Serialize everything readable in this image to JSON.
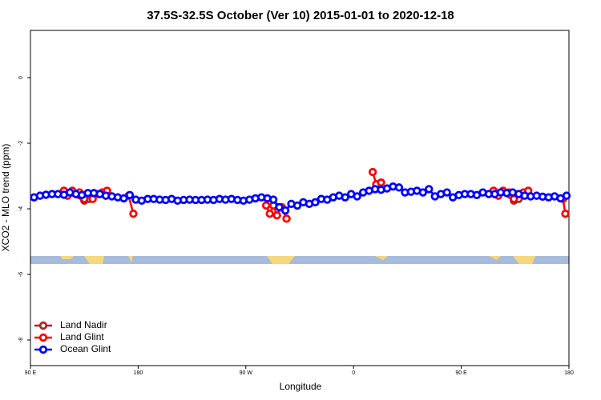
{
  "chart_data": {
    "type": "line",
    "title": "37.5S-32.5S October (Ver 10)   2015-01-01 to 2020-12-18",
    "x_label": "Longitude",
    "y_label": "XCO2 - MLO trend (ppm)",
    "xlim": [
      90,
      540
    ],
    "ylim": [
      -8.78,
      1.44
    ],
    "xticks": [
      {
        "value": 90,
        "label": "90 E"
      },
      180,
      {
        "value": 270,
        "label": "90 W"
      },
      {
        "value": 360,
        "label": "0"
      },
      {
        "value": 450,
        "label": "90 E"
      },
      {
        "value": 540,
        "label": "180"
      }
    ],
    "yticks": [
      0,
      -2,
      -4,
      -6,
      -8
    ],
    "legend": "bottom-left",
    "series": [
      {
        "name": "Land Nadir",
        "color": "#a52a2a",
        "x": [
          118,
          122,
          135,
          139,
          460,
          483,
          494,
          498
        ],
        "values": [
          -3.45,
          -3.55,
          -3.75,
          -3.7,
          null,
          -3.5,
          -3.75,
          -3.7
        ]
      },
      {
        "name": "Land Glint",
        "color": "#ff0000",
        "x": [
          118,
          121,
          125,
          131,
          135,
          139,
          142,
          146,
          150,
          154,
          160,
          172,
          176,
          200,
          287,
          290,
          293,
          296,
          300,
          304,
          340,
          376,
          379,
          383,
          420,
          477,
          481,
          485,
          490,
          494,
          498,
          502,
          506,
          520,
          535,
          537
        ],
        "values": [
          -3.45,
          -3.6,
          -3.45,
          -3.5,
          -3.7,
          -3.55,
          -3.7,
          -3.55,
          -3.5,
          -3.45,
          null,
          -3.6,
          -4.15,
          null,
          -3.9,
          -4.15,
          -3.9,
          -4.2,
          -3.95,
          -4.3,
          null,
          -2.88,
          -3.25,
          -3.2,
          null,
          -3.45,
          -3.6,
          -3.45,
          -3.5,
          -3.7,
          -3.55,
          -3.5,
          -3.45,
          null,
          -3.7,
          -4.15
        ]
      },
      {
        "name": "Ocean Glint",
        "color": "#0000ff",
        "x": [
          93,
          98,
          103,
          108,
          113,
          118,
          123,
          128,
          133,
          138,
          143,
          148,
          153,
          158,
          163,
          168,
          173,
          178,
          183,
          188,
          193,
          198,
          203,
          208,
          213,
          218,
          223,
          228,
          233,
          238,
          243,
          248,
          253,
          258,
          263,
          268,
          273,
          278,
          283,
          288,
          293,
          298,
          303,
          308,
          313,
          318,
          323,
          328,
          333,
          338,
          343,
          348,
          353,
          358,
          363,
          368,
          373,
          378,
          383,
          388,
          393,
          398,
          403,
          408,
          413,
          418,
          423,
          428,
          433,
          438,
          443,
          448,
          453,
          458,
          463,
          468,
          473,
          478,
          483,
          488,
          493,
          498,
          503,
          508,
          513,
          518,
          523,
          528,
          533,
          538
        ],
        "values": [
          -3.65,
          -3.6,
          -3.57,
          -3.55,
          -3.55,
          -3.57,
          -3.5,
          -3.55,
          -3.58,
          -3.52,
          -3.52,
          -3.55,
          -3.6,
          -3.62,
          -3.65,
          -3.68,
          -3.58,
          -3.72,
          -3.75,
          -3.7,
          -3.7,
          -3.72,
          -3.73,
          -3.7,
          -3.75,
          -3.73,
          -3.72,
          -3.73,
          -3.73,
          -3.72,
          -3.73,
          -3.7,
          -3.72,
          -3.7,
          -3.73,
          -3.75,
          -3.72,
          -3.68,
          -3.65,
          -3.68,
          -3.72,
          -3.95,
          -4.05,
          -3.85,
          -3.9,
          -3.8,
          -3.85,
          -3.8,
          -3.7,
          -3.72,
          -3.65,
          -3.6,
          -3.65,
          -3.55,
          -3.62,
          -3.5,
          -3.45,
          -3.4,
          -3.42,
          -3.38,
          -3.32,
          -3.35,
          -3.5,
          -3.48,
          -3.45,
          -3.5,
          -3.4,
          -3.62,
          -3.55,
          -3.5,
          -3.65,
          -3.58,
          -3.55,
          -3.55,
          -3.58,
          -3.5,
          -3.55,
          -3.55,
          -3.5,
          -3.52,
          -3.5,
          -3.55,
          -3.6,
          -3.62,
          -3.6,
          -3.63,
          -3.65,
          -3.62,
          -3.68,
          -3.6
        ]
      }
    ]
  }
}
